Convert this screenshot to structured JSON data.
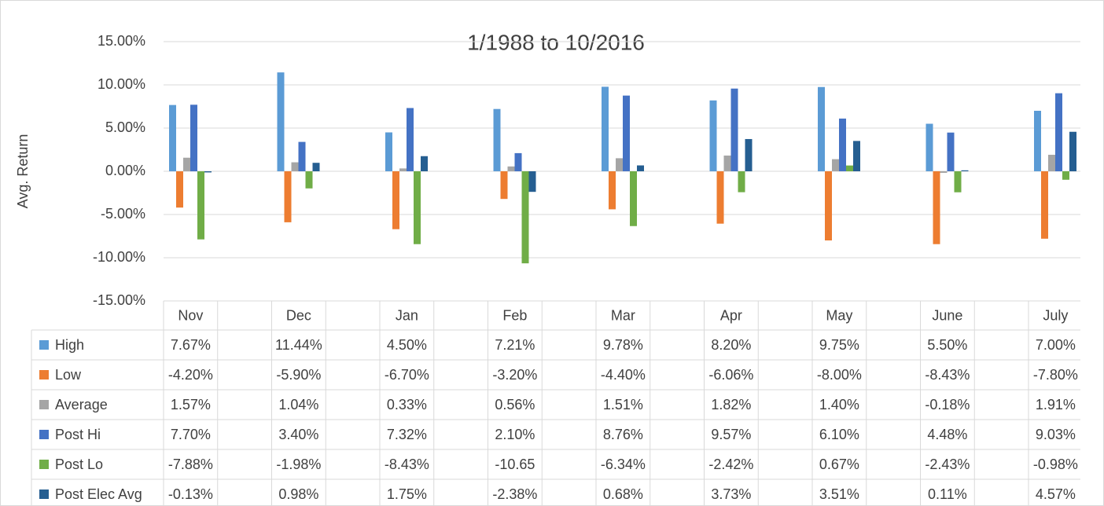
{
  "chart_data": {
    "type": "bar",
    "title": "1/1988 to 10/2016",
    "y_label": "Avg. Return",
    "categories": [
      "Nov",
      "Dec",
      "Jan",
      "Feb",
      "Mar",
      "Apr",
      "May",
      "June",
      "July"
    ],
    "ylim": [
      -15,
      15
    ],
    "yticks": [
      {
        "value": -15,
        "label": "-15.00%"
      },
      {
        "value": -10,
        "label": "-10.00%"
      },
      {
        "value": -5,
        "label": "-5.00%"
      },
      {
        "value": 0,
        "label": "0.00%"
      },
      {
        "value": 5,
        "label": "5.00%"
      },
      {
        "value": 10,
        "label": "10.00%"
      },
      {
        "value": 15,
        "label": "15.00%"
      }
    ],
    "grid": true,
    "series": [
      {
        "name": "High",
        "color": "#5b9bd5",
        "values": [
          7.67,
          11.44,
          4.5,
          7.21,
          9.78,
          8.2,
          9.75,
          5.5,
          7.0
        ],
        "value_labels": [
          "7.67%",
          "11.44%",
          "4.50%",
          "7.21%",
          "9.78%",
          "8.20%",
          "9.75%",
          "5.50%",
          "7.00%"
        ]
      },
      {
        "name": "Low",
        "color": "#ed7d31",
        "values": [
          -4.2,
          -5.9,
          -6.7,
          -3.2,
          -4.4,
          -6.06,
          -8.0,
          -8.43,
          -7.8
        ],
        "value_labels": [
          "-4.20%",
          "-5.90%",
          "-6.70%",
          "-3.20%",
          "-4.40%",
          "-6.06%",
          "-8.00%",
          "-8.43%",
          "-7.80%"
        ]
      },
      {
        "name": "Average",
        "color": "#a5a5a5",
        "values": [
          1.57,
          1.04,
          0.33,
          0.56,
          1.51,
          1.82,
          1.4,
          -0.18,
          1.91
        ],
        "value_labels": [
          "1.57%",
          "1.04%",
          "0.33%",
          "0.56%",
          "1.51%",
          "1.82%",
          "1.40%",
          "-0.18%",
          "1.91%"
        ]
      },
      {
        "name": "Post Hi",
        "color": "#4472c4",
        "values": [
          7.7,
          3.4,
          7.32,
          2.1,
          8.76,
          9.57,
          6.1,
          4.48,
          9.03
        ],
        "value_labels": [
          "7.70%",
          "3.40%",
          "7.32%",
          "2.10%",
          "8.76%",
          "9.57%",
          "6.10%",
          "4.48%",
          "9.03%"
        ]
      },
      {
        "name": "Post Lo",
        "color": "#70ad47",
        "values": [
          -7.88,
          -1.98,
          -8.43,
          -10.65,
          -6.34,
          -2.42,
          0.67,
          -2.43,
          -0.98
        ],
        "value_labels": [
          "-7.88%",
          "-1.98%",
          "-8.43%",
          "-10.65",
          "-6.34%",
          "-2.42%",
          "0.67%",
          "-2.43%",
          "-0.98%"
        ]
      },
      {
        "name": "Post Elec Avg",
        "color": "#255e91",
        "values": [
          -0.13,
          0.98,
          1.75,
          -2.38,
          0.68,
          3.73,
          3.51,
          0.11,
          4.57
        ],
        "value_labels": [
          "-0.13%",
          "0.98%",
          "1.75%",
          "-2.38%",
          "0.68%",
          "3.73%",
          "3.51%",
          "0.11%",
          "4.57%"
        ]
      }
    ]
  }
}
